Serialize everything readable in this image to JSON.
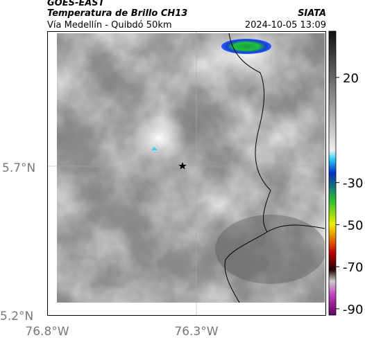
{
  "header": {
    "satellite": "GOES-EAST",
    "title": "Temperatura de Brillo CH13",
    "subtitle": "Vía Medellín - Quibdó 50km",
    "source": "SIATA",
    "timestamp": "2024-10-05 13:09"
  },
  "map": {
    "lat_ticks": [
      "5.7°N",
      "5.2°N"
    ],
    "lon_ticks": [
      "76.8°W",
      "76.3°W"
    ]
  },
  "colorbar": {
    "lim": [
      42,
      -93
    ],
    "ticks": [
      20,
      -30,
      -50,
      -70,
      -90
    ]
  }
}
